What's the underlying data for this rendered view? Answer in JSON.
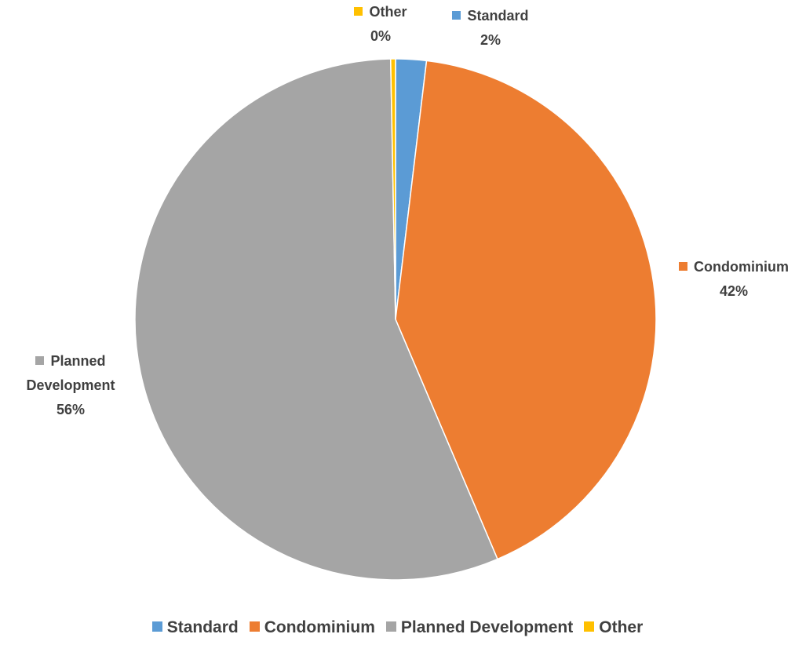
{
  "chart_data": {
    "type": "pie",
    "categories": [
      "Standard",
      "Condominium",
      "Planned Development",
      "Other"
    ],
    "values": [
      1.9,
      41.7,
      56.1,
      0.3
    ],
    "value_labels": [
      "2%",
      "42%",
      "56%",
      "0%"
    ],
    "colors": [
      "#5b9bd5",
      "#ed7d31",
      "#a5a5a5",
      "#ffc000"
    ],
    "legend": "bottom"
  }
}
